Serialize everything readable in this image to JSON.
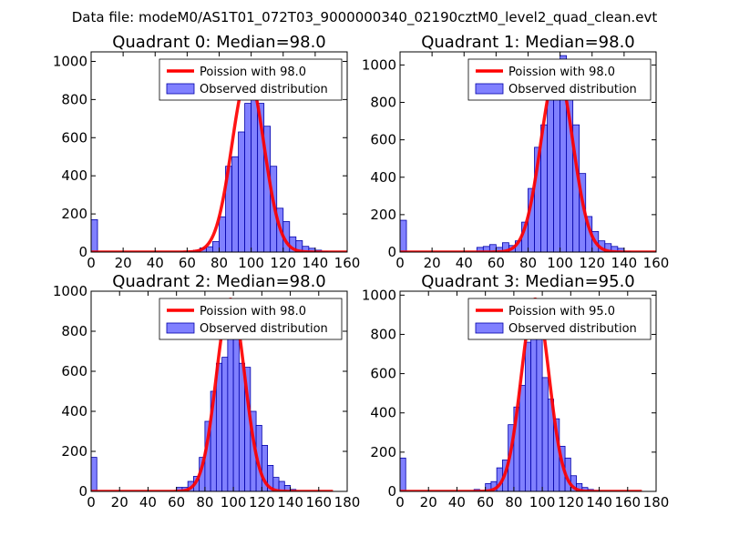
{
  "figure": {
    "suptitle": "Data file: modeM0/AS1T01_072T03_9000000340_02190cztM0_level2_quad_clean.evt"
  },
  "colors": {
    "hist_fill": "#8080ff",
    "hist_edge": "#0000aa",
    "poisson_line": "#ff0000",
    "axes": "#000000"
  },
  "chart_data": [
    {
      "type": "bar",
      "title": "Quadrant 0: Median=98.0",
      "xlim": [
        0,
        160
      ],
      "ylim": [
        0,
        1050
      ],
      "xticks": [
        0,
        20,
        40,
        60,
        80,
        100,
        120,
        140,
        160
      ],
      "yticks": [
        0,
        200,
        400,
        600,
        800,
        1000
      ],
      "bin_width": 4,
      "legend": {
        "location": "upper right",
        "line_label": "Poission with 98.0",
        "hist_label": "Observed distribution"
      },
      "bins": [
        [
          0,
          170
        ],
        [
          56,
          3
        ],
        [
          60,
          5
        ],
        [
          64,
          10
        ],
        [
          68,
          22
        ],
        [
          72,
          28
        ],
        [
          76,
          55
        ],
        [
          80,
          185
        ],
        [
          84,
          450
        ],
        [
          88,
          500
        ],
        [
          92,
          630
        ],
        [
          96,
          780
        ],
        [
          100,
          930
        ],
        [
          104,
          780
        ],
        [
          108,
          660
        ],
        [
          112,
          450
        ],
        [
          116,
          230
        ],
        [
          120,
          160
        ],
        [
          124,
          80
        ],
        [
          128,
          60
        ],
        [
          132,
          30
        ],
        [
          136,
          20
        ],
        [
          140,
          10
        ],
        [
          144,
          4
        ]
      ],
      "poisson": {
        "mean": 98.0,
        "peak": 930,
        "sigma": 10.0,
        "x_start": 0,
        "x_end": 160
      }
    },
    {
      "type": "bar",
      "title": "Quadrant 1: Median=98.0",
      "xlim": [
        0,
        160
      ],
      "ylim": [
        0,
        1070
      ],
      "xticks": [
        0,
        20,
        40,
        60,
        80,
        100,
        120,
        140,
        160
      ],
      "yticks": [
        0,
        200,
        400,
        600,
        800,
        1000
      ],
      "bin_width": 4,
      "legend": {
        "location": "upper right",
        "line_label": "Poission with 98.0",
        "hist_label": "Observed distribution"
      },
      "bins": [
        [
          0,
          170
        ],
        [
          48,
          25
        ],
        [
          52,
          30
        ],
        [
          56,
          40
        ],
        [
          60,
          25
        ],
        [
          64,
          50
        ],
        [
          68,
          35
        ],
        [
          72,
          60
        ],
        [
          76,
          160
        ],
        [
          80,
          340
        ],
        [
          84,
          560
        ],
        [
          88,
          680
        ],
        [
          92,
          830
        ],
        [
          96,
          890
        ],
        [
          100,
          1050
        ],
        [
          104,
          910
        ],
        [
          108,
          680
        ],
        [
          112,
          420
        ],
        [
          116,
          190
        ],
        [
          120,
          110
        ],
        [
          124,
          60
        ],
        [
          128,
          45
        ],
        [
          132,
          30
        ],
        [
          136,
          20
        ],
        [
          140,
          5
        ]
      ],
      "poisson": {
        "mean": 98.0,
        "peak": 970,
        "sigma": 10.0,
        "x_start": 0,
        "x_end": 160
      }
    },
    {
      "type": "bar",
      "title": "Quadrant 2: Median=98.0",
      "xlim": [
        0,
        180
      ],
      "ylim": [
        0,
        1000
      ],
      "xticks": [
        0,
        20,
        40,
        60,
        80,
        100,
        120,
        140,
        160,
        180
      ],
      "yticks": [
        0,
        200,
        400,
        600,
        800,
        1000
      ],
      "bin_width": 4,
      "legend": {
        "location": "upper right",
        "line_label": "Poission with 98.0",
        "hist_label": "Observed distribution"
      },
      "bins": [
        [
          0,
          170
        ],
        [
          60,
          20
        ],
        [
          64,
          20
        ],
        [
          68,
          50
        ],
        [
          72,
          75
        ],
        [
          76,
          170
        ],
        [
          80,
          350
        ],
        [
          84,
          500
        ],
        [
          88,
          640
        ],
        [
          92,
          670
        ],
        [
          96,
          810
        ],
        [
          100,
          780
        ],
        [
          104,
          640
        ],
        [
          108,
          620
        ],
        [
          112,
          400
        ],
        [
          116,
          330
        ],
        [
          120,
          230
        ],
        [
          124,
          130
        ],
        [
          128,
          70
        ],
        [
          132,
          50
        ],
        [
          136,
          30
        ],
        [
          140,
          10
        ]
      ],
      "poisson": {
        "mean": 98.0,
        "peak": 960,
        "sigma": 9.9,
        "x_start": 0,
        "x_end": 170
      }
    },
    {
      "type": "bar",
      "title": "Quadrant 3: Median=95.0",
      "xlim": [
        0,
        180
      ],
      "ylim": [
        0,
        1020
      ],
      "xticks": [
        0,
        20,
        40,
        60,
        80,
        100,
        120,
        140,
        160,
        180
      ],
      "yticks": [
        0,
        200,
        400,
        600,
        800,
        1000
      ],
      "bin_width": 4,
      "legend": {
        "location": "upper right",
        "line_label": "Poission with 95.0",
        "hist_label": "Observed distribution"
      },
      "bins": [
        [
          0,
          170
        ],
        [
          52,
          10
        ],
        [
          56,
          5
        ],
        [
          60,
          40
        ],
        [
          64,
          50
        ],
        [
          68,
          120
        ],
        [
          72,
          160
        ],
        [
          76,
          340
        ],
        [
          80,
          430
        ],
        [
          84,
          540
        ],
        [
          88,
          760
        ],
        [
          92,
          820
        ],
        [
          96,
          780
        ],
        [
          100,
          580
        ],
        [
          104,
          470
        ],
        [
          108,
          370
        ],
        [
          112,
          230
        ],
        [
          116,
          170
        ],
        [
          120,
          80
        ],
        [
          124,
          40
        ],
        [
          128,
          20
        ],
        [
          132,
          10
        ],
        [
          136,
          5
        ]
      ],
      "poisson": {
        "mean": 95.0,
        "peak": 980,
        "sigma": 9.7,
        "x_start": 0,
        "x_end": 170
      }
    }
  ]
}
